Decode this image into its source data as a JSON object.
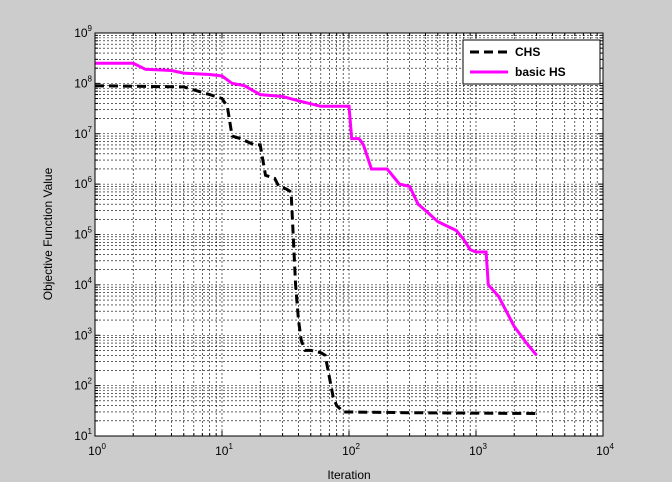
{
  "chart_data": {
    "type": "line",
    "xlabel": "Iteration",
    "ylabel": "Objective Function Value",
    "xscale": "log",
    "yscale": "log",
    "xlim": [
      1,
      10000
    ],
    "ylim": [
      10,
      1000000000
    ],
    "grid": true,
    "legend_position": "top-right",
    "x_ticks": [
      {
        "base": "10",
        "exp": "0",
        "value": 1
      },
      {
        "base": "10",
        "exp": "1",
        "value": 10
      },
      {
        "base": "10",
        "exp": "2",
        "value": 100
      },
      {
        "base": "10",
        "exp": "3",
        "value": 1000
      },
      {
        "base": "10",
        "exp": "4",
        "value": 10000
      }
    ],
    "y_ticks": [
      {
        "base": "10",
        "exp": "1",
        "value": 10
      },
      {
        "base": "10",
        "exp": "2",
        "value": 100
      },
      {
        "base": "10",
        "exp": "3",
        "value": 1000
      },
      {
        "base": "10",
        "exp": "4",
        "value": 10000
      },
      {
        "base": "10",
        "exp": "5",
        "value": 100000
      },
      {
        "base": "10",
        "exp": "6",
        "value": 1000000
      },
      {
        "base": "10",
        "exp": "7",
        "value": 10000000
      },
      {
        "base": "10",
        "exp": "8",
        "value": 100000000
      },
      {
        "base": "10",
        "exp": "9",
        "value": 1000000000
      }
    ],
    "series": [
      {
        "name": "CHS",
        "color": "#000000",
        "style": "dashed",
        "points": [
          [
            1,
            90000000
          ],
          [
            5,
            85000000
          ],
          [
            8,
            60000000
          ],
          [
            10,
            50000000
          ],
          [
            11,
            35000000
          ],
          [
            12,
            9000000
          ],
          [
            14,
            8000000
          ],
          [
            18,
            6000000
          ],
          [
            20,
            6000000
          ],
          [
            22,
            1500000
          ],
          [
            26,
            1300000
          ],
          [
            28,
            900000
          ],
          [
            32,
            800000
          ],
          [
            35,
            700000
          ],
          [
            38,
            10000
          ],
          [
            40,
            2000
          ],
          [
            42,
            800
          ],
          [
            45,
            500
          ],
          [
            50,
            500
          ],
          [
            60,
            450
          ],
          [
            65,
            400
          ],
          [
            70,
            150
          ],
          [
            75,
            60
          ],
          [
            80,
            40
          ],
          [
            85,
            35
          ],
          [
            90,
            30
          ],
          [
            100,
            30
          ],
          [
            300,
            29
          ],
          [
            3000,
            28
          ]
        ]
      },
      {
        "name": "basic HS",
        "color": "#ff00ff",
        "style": "solid",
        "points": [
          [
            1,
            250000000
          ],
          [
            2,
            250000000
          ],
          [
            2.5,
            190000000
          ],
          [
            4,
            180000000
          ],
          [
            5,
            160000000
          ],
          [
            8,
            150000000
          ],
          [
            10,
            140000000
          ],
          [
            12,
            100000000
          ],
          [
            15,
            90000000
          ],
          [
            20,
            60000000
          ],
          [
            30,
            55000000
          ],
          [
            40,
            45000000
          ],
          [
            60,
            35000000
          ],
          [
            80,
            35000000
          ],
          [
            100,
            35000000
          ],
          [
            105,
            8000000
          ],
          [
            120,
            8000000
          ],
          [
            130,
            6000000
          ],
          [
            150,
            2000000
          ],
          [
            200,
            2000000
          ],
          [
            250,
            1000000
          ],
          [
            300,
            900000
          ],
          [
            350,
            400000
          ],
          [
            400,
            300000
          ],
          [
            500,
            180000
          ],
          [
            700,
            120000
          ],
          [
            800,
            80000
          ],
          [
            900,
            50000
          ],
          [
            1000,
            45000
          ],
          [
            1200,
            45000
          ],
          [
            1250,
            10000
          ],
          [
            1500,
            6000
          ],
          [
            2000,
            1500
          ],
          [
            2500,
            700
          ],
          [
            3000,
            400
          ]
        ]
      }
    ]
  }
}
